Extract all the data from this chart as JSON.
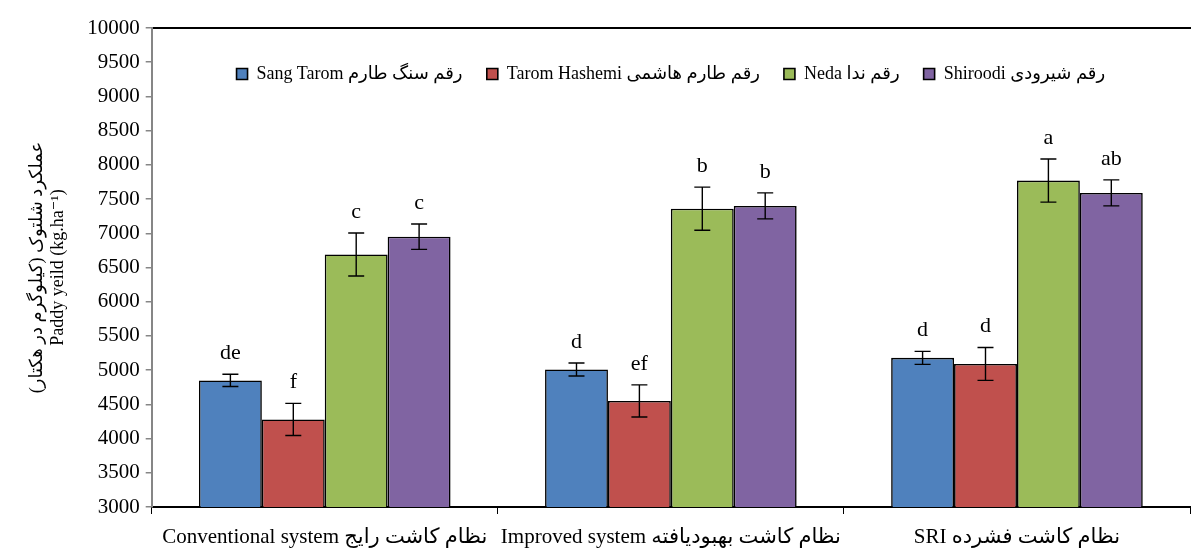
{
  "chart_data": {
    "type": "bar",
    "ylabel": "عملکرد شلتوک (کیلوگرم در هکتار)\nPaddy yeild (kg.ha⁻¹)",
    "categories": [
      "Conventional system نظام کاشت رایج",
      "Improved system نظام کاشت بهبودیافته",
      "SRI نظام کاشت فشرده"
    ],
    "series": [
      {
        "name": "Sang Tarom رقم سنگ طارم",
        "color": "#4f81bd",
        "values": [
          4850,
          5010,
          5180
        ],
        "errors": [
          90,
          95,
          95
        ],
        "value_labels": [
          "de",
          "d",
          "d"
        ]
      },
      {
        "name": "Tarom Hashemi رقم طارم هاشمی",
        "color": "#c0504d",
        "values": [
          4280,
          4550,
          5090
        ],
        "errors": [
          235,
          235,
          240
        ],
        "value_labels": [
          "f",
          "ef",
          "d"
        ]
      },
      {
        "name": "Neda رقم ندا",
        "color": "#9bbb59",
        "values": [
          6690,
          7360,
          7770
        ],
        "errors": [
          315,
          315,
          315
        ],
        "value_labels": [
          "c",
          "b",
          "a"
        ]
      },
      {
        "name": "Shiroodi رقم شیرودی",
        "color": "#8064a2",
        "values": [
          6950,
          7400,
          7590
        ],
        "errors": [
          185,
          190,
          190
        ],
        "value_labels": [
          "c",
          "b",
          "ab"
        ]
      }
    ],
    "ylim": [
      3000,
      10000
    ],
    "yticks": [
      3000,
      3500,
      4000,
      4500,
      5000,
      5500,
      6000,
      6500,
      7000,
      7500,
      8000,
      8500,
      9000,
      9500,
      10000
    ],
    "legend": "top"
  }
}
